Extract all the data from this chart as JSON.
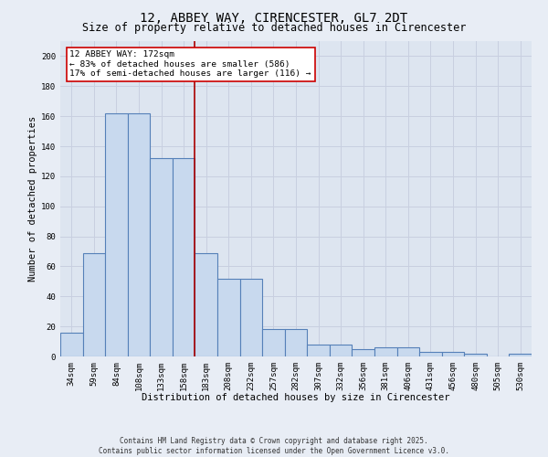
{
  "title": "12, ABBEY WAY, CIRENCESTER, GL7 2DT",
  "subtitle": "Size of property relative to detached houses in Cirencester",
  "xlabel": "Distribution of detached houses by size in Cirencester",
  "ylabel": "Number of detached properties",
  "categories": [
    "34sqm",
    "59sqm",
    "84sqm",
    "108sqm",
    "133sqm",
    "158sqm",
    "183sqm",
    "208sqm",
    "232sqm",
    "257sqm",
    "282sqm",
    "307sqm",
    "332sqm",
    "356sqm",
    "381sqm",
    "406sqm",
    "431sqm",
    "456sqm",
    "480sqm",
    "505sqm",
    "530sqm"
  ],
  "values": [
    16,
    69,
    162,
    162,
    132,
    132,
    69,
    52,
    52,
    18,
    18,
    8,
    8,
    5,
    6,
    6,
    3,
    3,
    2,
    0,
    2
  ],
  "bar_color": "#c8d9ee",
  "bar_edge_color": "#5580b8",
  "bar_linewidth": 0.8,
  "vline_color": "#aa0000",
  "annotation_text": "12 ABBEY WAY: 172sqm\n← 83% of detached houses are smaller (586)\n17% of semi-detached houses are larger (116) →",
  "annotation_box_color": "#ffffff",
  "annotation_box_edge": "#cc0000",
  "ylim": [
    0,
    210
  ],
  "yticks": [
    0,
    20,
    40,
    60,
    80,
    100,
    120,
    140,
    160,
    180,
    200
  ],
  "grid_color": "#c8cfe0",
  "bg_color": "#dde5f0",
  "fig_bg_color": "#e8edf5",
  "title_fontsize": 10,
  "subtitle_fontsize": 8.5,
  "axis_label_fontsize": 7.5,
  "tick_fontsize": 6.5,
  "annotation_fontsize": 6.8,
  "footer_text": "Contains HM Land Registry data © Crown copyright and database right 2025.\nContains public sector information licensed under the Open Government Licence v3.0.",
  "footer_fontsize": 5.5,
  "font_family": "DejaVu Sans Mono"
}
